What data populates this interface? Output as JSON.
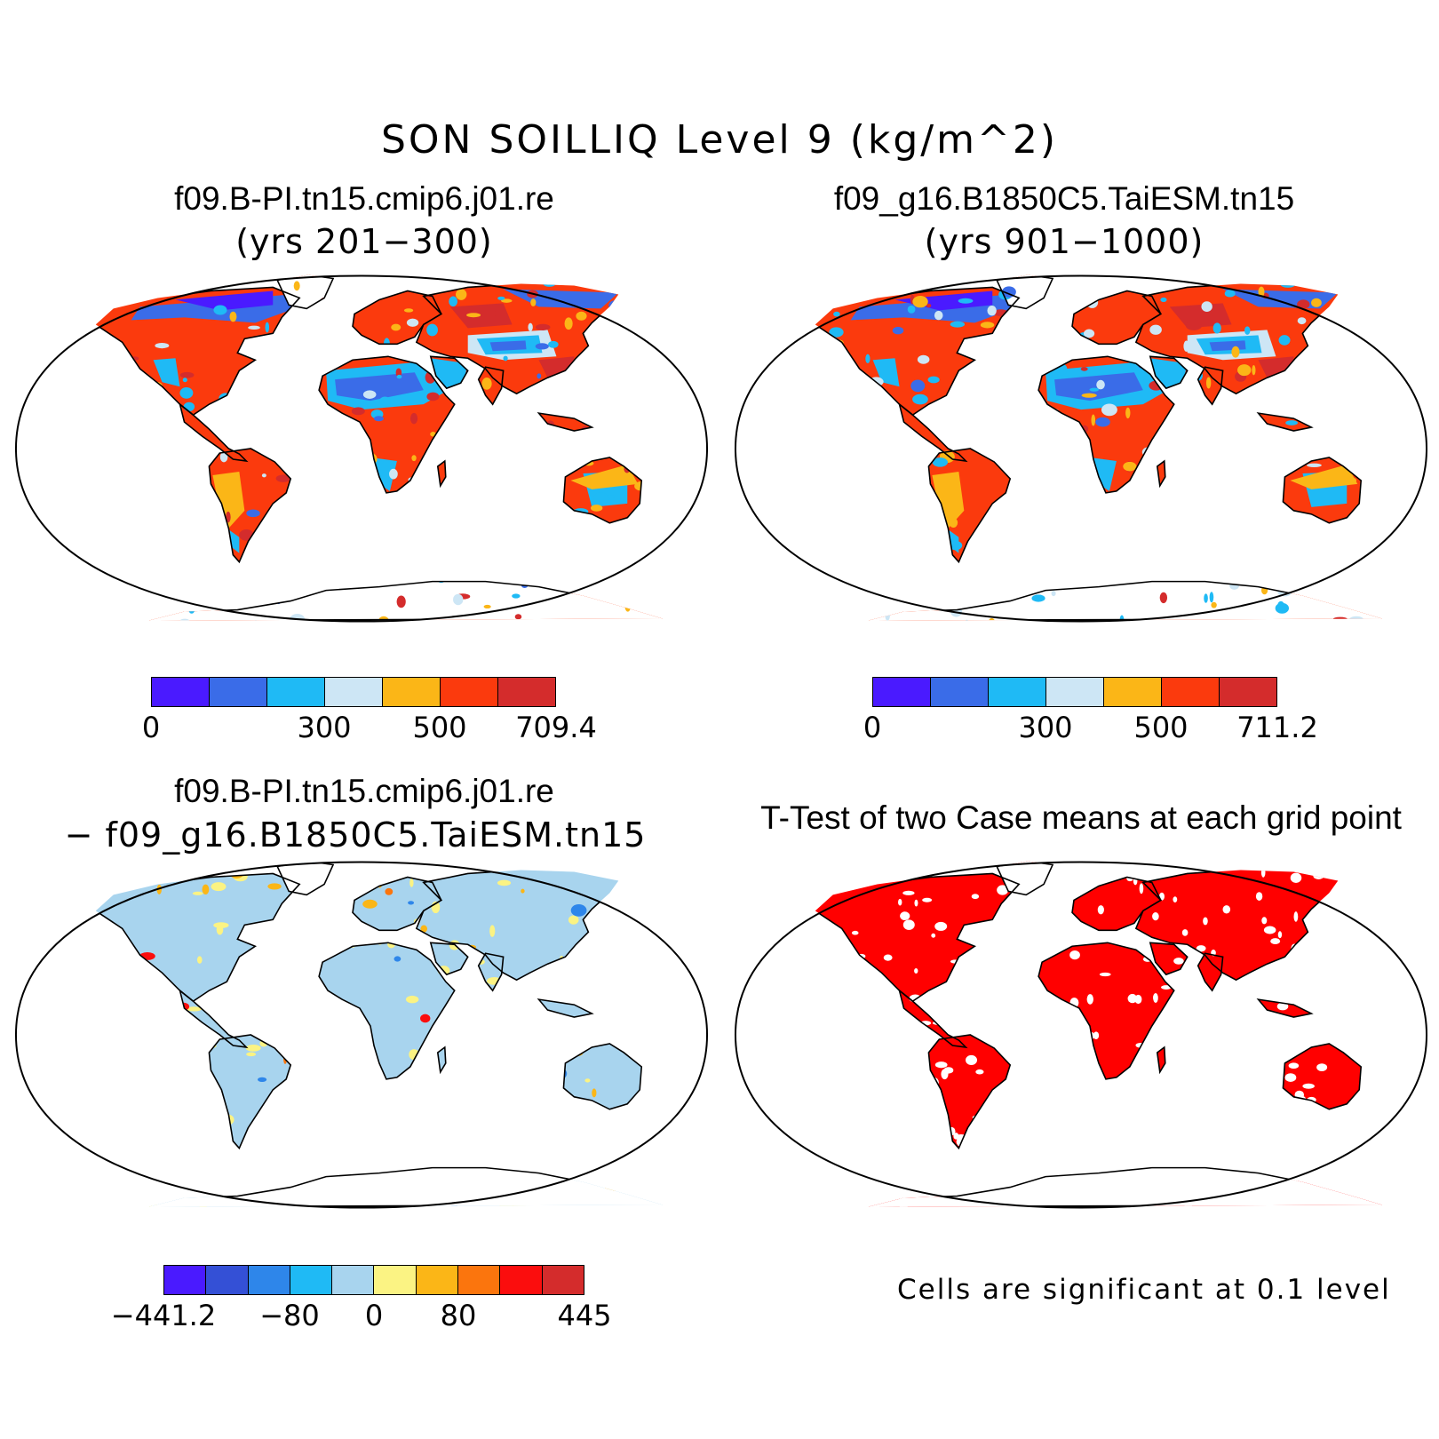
{
  "figure": {
    "title": "SON SOILLIQ Level 9 (kg/m^2)"
  },
  "panels": [
    {
      "case": "f09.B-PI.tn15.cmip6.j01.re",
      "years": "(yrs 201−300)",
      "colorbar": {
        "colors": [
          "#4a1aff",
          "#3a6ce8",
          "#1fbaf5",
          "#cde6f5",
          "#fbb617",
          "#fb3a0d",
          "#d42c2c"
        ],
        "ticks": [
          "0",
          "300",
          "500",
          "709.4"
        ]
      }
    },
    {
      "case": "f09_g16.B1850C5.TaiESM.tn15",
      "years": "(yrs 901−1000)",
      "colorbar": {
        "colors": [
          "#4a1aff",
          "#3a6ce8",
          "#1fbaf5",
          "#cde6f5",
          "#fbb617",
          "#fb3a0d",
          "#d42c2c"
        ],
        "ticks": [
          "0",
          "300",
          "500",
          "711.2"
        ]
      }
    },
    {
      "case": "f09.B-PI.tn15.cmip6.j01.re",
      "subtitle": "− f09_g16.B1850C5.TaiESM.tn15",
      "colorbar": {
        "colors": [
          "#4a1aff",
          "#3450d6",
          "#2e86ea",
          "#1fbaf5",
          "#a8d4ee",
          "#fbf383",
          "#fbb617",
          "#fb750d",
          "#fb0d0d",
          "#d42c2c"
        ],
        "ticks": [
          "−441.2",
          "−80",
          "0",
          "80",
          "445"
        ]
      }
    },
    {
      "title": "T-Test of two Case means at each grid point",
      "note": "Cells are significant at 0.1 level"
    }
  ],
  "colors": {
    "significant": "#ff0000",
    "ocean": "#ffffff",
    "coastline": "#000000"
  }
}
